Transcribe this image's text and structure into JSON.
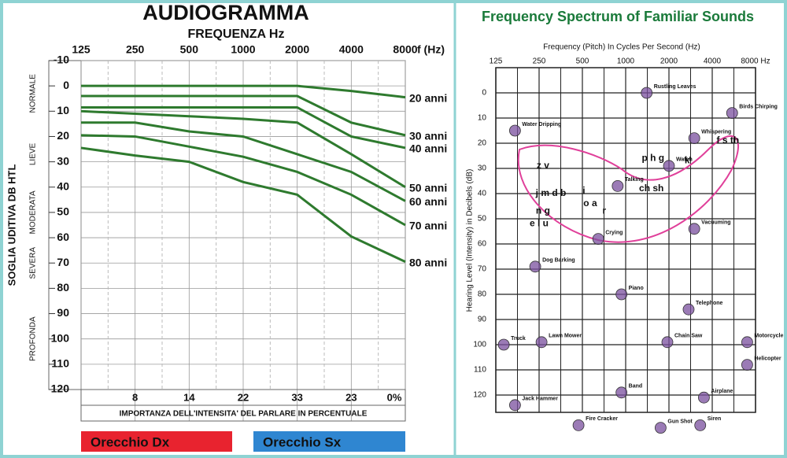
{
  "chart_data": [
    {
      "type": "line",
      "title": "AUDIOGRAMMA",
      "subtitle": "FREQUENZA Hz",
      "x_label": "f (Hz)",
      "y_label": "SOGLIA UDITIVA DB HTL",
      "x": [
        125,
        250,
        500,
        1000,
        2000,
        4000,
        8000
      ],
      "xscale": "log",
      "xlim": [
        125,
        8000
      ],
      "xticks": [
        125,
        250,
        500,
        1000,
        2000,
        4000,
        8000
      ],
      "ylim": [
        -10,
        120
      ],
      "yticks": [
        -10,
        0,
        10,
        20,
        30,
        40,
        50,
        60,
        70,
        80,
        90,
        100,
        110,
        120
      ],
      "y_inverted": true,
      "grid": true,
      "color": "#2e7a2e",
      "series": [
        {
          "name": "20 anni",
          "values": [
            0,
            0,
            0,
            0,
            0,
            2,
            4.5
          ]
        },
        {
          "name": "30 anni",
          "values": [
            4,
            4,
            4,
            4,
            4,
            14.5,
            19.5
          ]
        },
        {
          "name": "40 anni",
          "values": [
            8.5,
            8.5,
            8.5,
            8.5,
            8.5,
            20,
            24.5
          ]
        },
        {
          "name": "50 anni",
          "values": [
            10,
            11,
            12,
            13,
            14.5,
            27,
            40
          ]
        },
        {
          "name": "60 anni",
          "values": [
            14.5,
            14.5,
            18,
            20,
            27,
            34,
            45.5
          ]
        },
        {
          "name": "70 anni",
          "values": [
            19.5,
            20,
            24,
            28,
            34,
            43,
            55
          ]
        },
        {
          "name": "80 anni",
          "values": [
            24.5,
            27.5,
            30,
            38,
            43,
            59.5,
            69.5
          ]
        }
      ],
      "severity_labels": [
        "NORMALE",
        "LIEVE",
        "MODERATA",
        "SEVERA",
        "PROFONDA"
      ],
      "importance": {
        "label": "IMPORTANZA DELL'INTENSITA' DEL PARLARE IN PERCENTUALE",
        "values": [
          8,
          14,
          22,
          33,
          23,
          0
        ],
        "value_labels": [
          "8",
          "14",
          "22",
          "33",
          "23",
          "0%"
        ]
      },
      "buttons": [
        {
          "label": "Orecchio Dx",
          "color": "#e8232f"
        },
        {
          "label": "Orecchio Sx",
          "color": "#2f86d1"
        }
      ]
    },
    {
      "type": "scatter",
      "title": "Frequency Spectrum of Familiar Sounds",
      "x_label": "Frequency (Pitch) In Cycles Per Second (Hz)",
      "y_label": "Hearing Level (Intensity) in Decibels (dB)",
      "xscale": "log",
      "xlim": [
        125,
        8000
      ],
      "xticks": [
        125,
        250,
        500,
        1000,
        2000,
        4000,
        {
          "value": 8000,
          "label": "8000 Hz"
        }
      ],
      "ylim": [
        -10,
        135
      ],
      "yticks": [
        0,
        10,
        20,
        30,
        40,
        50,
        60,
        70,
        80,
        90,
        100,
        110,
        120
      ],
      "y_inverted": true,
      "grid": true,
      "color": "#7a4f9e",
      "sounds": {
        "labels": [
          "Rustling Leaves",
          "Birds Chirping",
          "Water Dripping",
          "Whispering",
          "Talking",
          "Watch",
          "Crying",
          "Vacuuming",
          "Dog Barking",
          "Piano",
          "Telephone",
          "Truck",
          "Lawn Mower",
          "Chain Saw",
          "Motorcycle",
          "Helicopter",
          "Band",
          "Airplane",
          "Jack Hammer",
          "Fire Cracker",
          "Gun Shot",
          "Siren"
        ],
        "x": [
          1400,
          5500,
          170,
          3000,
          880,
          2000,
          645,
          3000,
          235,
          935,
          2740,
          142,
          260,
          1950,
          7000,
          7000,
          935,
          3500,
          170,
          470,
          1750,
          3300
        ],
        "y": [
          0,
          8,
          15,
          18,
          37,
          29,
          58,
          54,
          69,
          80,
          86,
          100,
          99,
          99,
          99,
          108,
          119,
          121,
          124,
          132,
          133,
          132
        ]
      },
      "speech_sounds": {
        "labels": [
          "z v",
          "j m d b",
          "n g",
          "e l u",
          "i",
          "o a",
          "r",
          "p h g",
          "ch sh",
          "k",
          "f s th"
        ],
        "x": [
          266,
          302,
          266,
          250,
          512,
          567,
          710,
          1550,
          1510,
          2680,
          5140
        ],
        "y": [
          29,
          40,
          47,
          52,
          39,
          44,
          47,
          26,
          38,
          27,
          19
        ]
      },
      "banana_color": "#e0409a"
    }
  ]
}
